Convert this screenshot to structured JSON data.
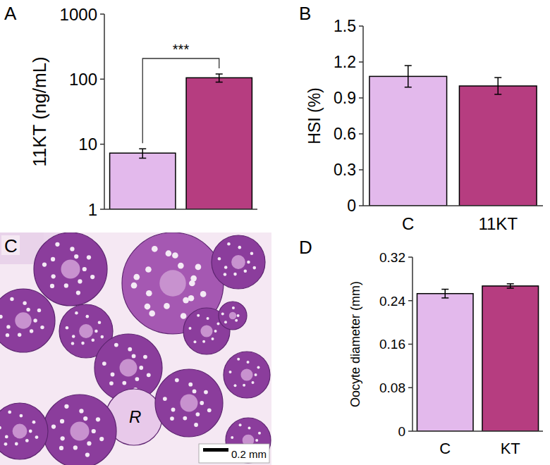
{
  "chart_data": [
    {
      "panel": "A",
      "type": "bar",
      "categories": [
        null,
        null
      ],
      "values": [
        7.3,
        105
      ],
      "errors": [
        1.2,
        15
      ],
      "colors": [
        "#e3b9ec",
        "#b63d80"
      ],
      "ylabel": "11KT (ng/mL)",
      "log": "y",
      "ylim": [
        1,
        1000
      ],
      "yticks": [
        1,
        10,
        100,
        1000
      ],
      "tick_labels": "y",
      "annotations": [
        "***"
      ]
    },
    {
      "panel": "B",
      "type": "bar",
      "categories": [
        "C",
        "11KT"
      ],
      "values": [
        1.08,
        1.0
      ],
      "errors": [
        0.09,
        0.07
      ],
      "colors": [
        "#e3b9ec",
        "#b63d80"
      ],
      "ylabel": "HSI (%)",
      "ylim": [
        0,
        1.5
      ],
      "yticks": [
        0,
        0.3,
        0.6,
        0.9,
        1.2,
        1.5
      ]
    },
    {
      "panel": "D",
      "type": "bar",
      "categories": [
        "C",
        "KT"
      ],
      "values": [
        0.253,
        0.267
      ],
      "errors": [
        0.008,
        0.004
      ],
      "colors": [
        "#e3b9ec",
        "#b63d80"
      ],
      "ylabel": "Oocyte diameter (mm)",
      "ylim": [
        0,
        0.32
      ],
      "yticks": [
        0,
        0.08,
        0.16,
        0.24,
        0.32
      ]
    }
  ],
  "micrograph": {
    "panel": "C",
    "label": "R",
    "scale_bar": "0.2 mm"
  }
}
